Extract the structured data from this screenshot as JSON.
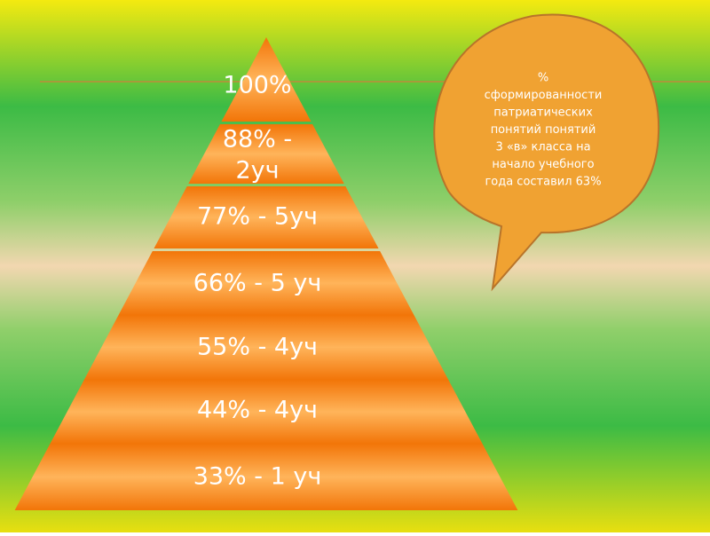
{
  "pyramid": {
    "levels": [
      {
        "lines": [
          "100%"
        ]
      },
      {
        "lines": [
          "88% -",
          "2уч"
        ]
      },
      {
        "lines": [
          "77% - 5уч"
        ]
      },
      {
        "lines": [
          "66% - 5 уч"
        ]
      },
      {
        "lines": [
          "55% - 4уч"
        ]
      },
      {
        "lines": [
          "44% - 4уч"
        ]
      },
      {
        "lines": [
          "33% - 1 уч"
        ]
      }
    ]
  },
  "bubble": {
    "lines": [
      "%",
      "сформированности",
      "патриатических",
      "понятий  понятий",
      "3 «в» класса на",
      "начало учебного",
      "года составил 63%"
    ]
  }
}
